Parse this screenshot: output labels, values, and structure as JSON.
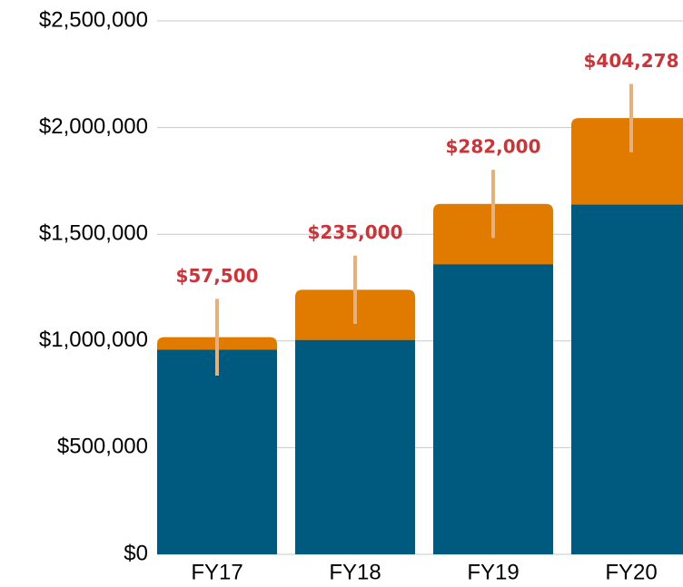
{
  "chart_data": {
    "type": "stacked_bar",
    "categories": [
      "FY17",
      "FY18",
      "FY19",
      "FY20"
    ],
    "series": [
      {
        "color": "#005a80",
        "values": [
          960000,
          1005000,
          1360000,
          1640000
        ]
      },
      {
        "color": "#e07b00",
        "values": [
          57500,
          235000,
          282000,
          404278
        ],
        "value_labels": [
          "$57,500",
          "$235,000",
          "$282,000",
          "$404,278"
        ],
        "errors": [
          180000,
          160000,
          160000,
          160000
        ],
        "error_color": "#e8b07a",
        "label_color": "#c8353a"
      }
    ],
    "ylim": [
      0,
      2500000
    ],
    "yticks": [
      {
        "value": 0,
        "label": "$0"
      },
      {
        "value": 500000,
        "label": "$500,000"
      },
      {
        "value": 1000000,
        "label": "$1,000,000"
      },
      {
        "value": 1500000,
        "label": "$1,500,000"
      },
      {
        "value": 2000000,
        "label": "$2,000,000"
      },
      {
        "value": 2500000,
        "label": "$2,500,000"
      }
    ],
    "grid": true
  }
}
